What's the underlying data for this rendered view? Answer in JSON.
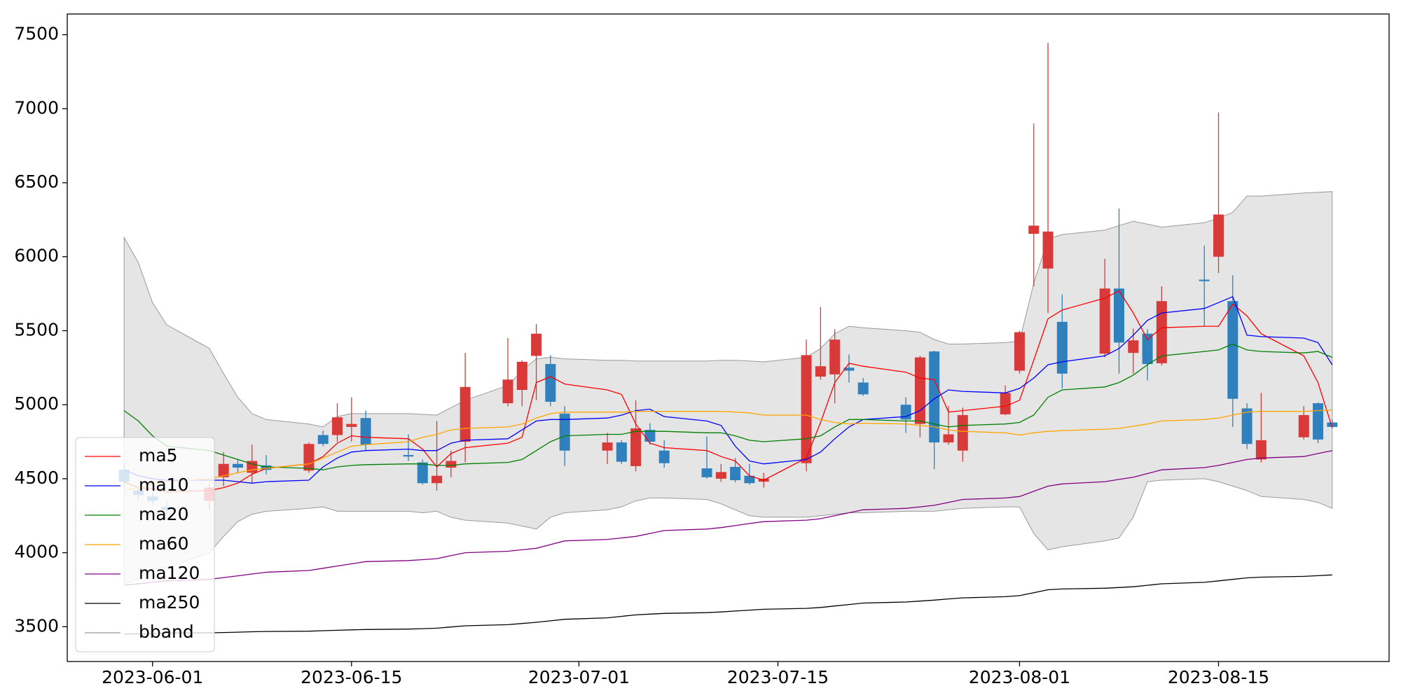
{
  "chart_data": {
    "type": "candlestick",
    "x": [
      "2023-05-30",
      "2023-05-31",
      "2023-06-01",
      "2023-06-02",
      "2023-06-05",
      "2023-06-06",
      "2023-06-07",
      "2023-06-08",
      "2023-06-09",
      "2023-06-12",
      "2023-06-13",
      "2023-06-14",
      "2023-06-15",
      "2023-06-16",
      "2023-06-19",
      "2023-06-20",
      "2023-06-21",
      "2023-06-22",
      "2023-06-23",
      "2023-06-26",
      "2023-06-27",
      "2023-06-28",
      "2023-06-29",
      "2023-06-30",
      "2023-07-03",
      "2023-07-04",
      "2023-07-05",
      "2023-07-06",
      "2023-07-07",
      "2023-07-10",
      "2023-07-11",
      "2023-07-12",
      "2023-07-13",
      "2023-07-14",
      "2023-07-17",
      "2023-07-18",
      "2023-07-19",
      "2023-07-20",
      "2023-07-21",
      "2023-07-24",
      "2023-07-25",
      "2023-07-26",
      "2023-07-27",
      "2023-07-28",
      "2023-07-31",
      "2023-08-01",
      "2023-08-02",
      "2023-08-03",
      "2023-08-04",
      "2023-08-07",
      "2023-08-08",
      "2023-08-09",
      "2023-08-10",
      "2023-08-11",
      "2023-08-14",
      "2023-08-15",
      "2023-08-16",
      "2023-08-17",
      "2023-08-18",
      "2023-08-21",
      "2023-08-22",
      "2023-08-23"
    ],
    "open": [
      4560,
      4420,
      4380,
      4310,
      4350,
      4510,
      4600,
      4540,
      4590,
      4555,
      4795,
      4795,
      4850,
      4910,
      4660,
      4610,
      4470,
      4575,
      4750,
      5010,
      5100,
      5330,
      5275,
      4940,
      4690,
      4745,
      4585,
      4830,
      4690,
      4570,
      4500,
      4580,
      4520,
      4480,
      4605,
      5190,
      5205,
      5250,
      5150,
      5000,
      4870,
      5360,
      4745,
      4690,
      4935,
      5230,
      6155,
      5920,
      5560,
      5345,
      5785,
      5350,
      5480,
      5280,
      5845,
      6000,
      5700,
      4975,
      4630,
      4780,
      5010,
      4880
    ],
    "high": [
      4600,
      4450,
      4410,
      4350,
      4460,
      4680,
      4630,
      4730,
      4660,
      4745,
      4825,
      5010,
      5050,
      4960,
      4800,
      4630,
      4890,
      4690,
      5350,
      5450,
      5300,
      5545,
      5335,
      4990,
      4810,
      4760,
      5030,
      4875,
      4760,
      4785,
      4600,
      4640,
      4600,
      4540,
      5440,
      5660,
      5510,
      5340,
      5180,
      5050,
      5330,
      5365,
      4990,
      4980,
      5130,
      5500,
      6900,
      7445,
      5745,
      5985,
      6325,
      5515,
      5510,
      5800,
      6075,
      6975,
      5875,
      5010,
      5080,
      4990,
      5015,
      4900
    ],
    "low": [
      4450,
      4350,
      4320,
      4260,
      4290,
      4450,
      4540,
      4470,
      4530,
      4540,
      4720,
      4750,
      4750,
      4690,
      4620,
      4460,
      4420,
      4510,
      4610,
      4990,
      4990,
      5030,
      4990,
      4585,
      4600,
      4600,
      4550,
      4730,
      4575,
      4500,
      4480,
      4475,
      4460,
      4440,
      4550,
      5170,
      5010,
      5150,
      5060,
      4810,
      4780,
      4565,
      4730,
      4615,
      4930,
      5210,
      5800,
      5620,
      5110,
      5320,
      5210,
      5210,
      5165,
      5265,
      5530,
      5890,
      4850,
      4700,
      4610,
      4765,
      4740,
      4840
    ],
    "close": [
      4480,
      4390,
      4350,
      4290,
      4440,
      4600,
      4575,
      4620,
      4560,
      4735,
      4735,
      4915,
      4870,
      4730,
      4650,
      4470,
      4520,
      4620,
      5120,
      5170,
      5290,
      5480,
      5020,
      4690,
      4745,
      4615,
      4840,
      4750,
      4605,
      4510,
      4545,
      4490,
      4470,
      4500,
      5335,
      5260,
      5440,
      5230,
      5070,
      4900,
      5320,
      4745,
      4800,
      4930,
      5080,
      5490,
      6210,
      6170,
      5210,
      5785,
      5420,
      5435,
      5275,
      5700,
      5835,
      6285,
      5040,
      4735,
      4760,
      4930,
      4765,
      4850
    ],
    "up_color": "#d83a3a",
    "down_color": "#2f80bd",
    "series": [
      {
        "name": "ma5",
        "color": "#ff0000",
        "values": [
          4480,
          4440,
          4430,
          4410,
          4420,
          4440,
          4470,
          4530,
          4570,
          4600,
          4650,
          4740,
          4790,
          4780,
          4770,
          4700,
          4580,
          4670,
          4710,
          4740,
          4780,
          5150,
          5190,
          5140,
          5100,
          5070,
          4870,
          4740,
          4710,
          4690,
          4650,
          4620,
          4520,
          4490,
          4640,
          4880,
          5150,
          5280,
          5260,
          5220,
          5180,
          5170,
          4950,
          4960,
          4990,
          5030,
          5300,
          5580,
          5640,
          5720,
          5770,
          5620,
          5440,
          5520,
          5530,
          5530,
          5680,
          5600,
          5480,
          5330,
          5150,
          4845
        ]
      },
      {
        "name": "ma10",
        "color": "#0000ff",
        "values": [
          4560,
          4520,
          4500,
          4490,
          4490,
          4490,
          4480,
          4470,
          4480,
          4490,
          4580,
          4640,
          4680,
          4690,
          4700,
          4690,
          4690,
          4740,
          4760,
          4770,
          4830,
          4890,
          4900,
          4900,
          4910,
          4930,
          4960,
          4970,
          4920,
          4890,
          4860,
          4720,
          4620,
          4600,
          4630,
          4680,
          4770,
          4850,
          4900,
          4920,
          4960,
          5040,
          5100,
          5090,
          5080,
          5110,
          5180,
          5270,
          5290,
          5330,
          5380,
          5470,
          5570,
          5620,
          5650,
          5690,
          5730,
          5470,
          5460,
          5450,
          5420,
          5270
        ]
      },
      {
        "name": "ma20",
        "color": "#008000",
        "values": [
          4960,
          4890,
          4790,
          4720,
          4690,
          4660,
          4630,
          4600,
          4580,
          4570,
          4560,
          4580,
          4590,
          4595,
          4600,
          4600,
          4590,
          4590,
          4600,
          4610,
          4630,
          4690,
          4750,
          4790,
          4800,
          4800,
          4820,
          4820,
          4820,
          4810,
          4810,
          4790,
          4760,
          4750,
          4770,
          4790,
          4850,
          4900,
          4900,
          4890,
          4890,
          4870,
          4850,
          4860,
          4870,
          4880,
          4930,
          5050,
          5100,
          5120,
          5150,
          5200,
          5270,
          5330,
          5360,
          5370,
          5410,
          5370,
          5360,
          5350,
          5360,
          5320
        ]
      },
      {
        "name": "ma60",
        "color": "#ffa500",
        "values": [
          4420,
          4440,
          4460,
          4480,
          4500,
          4520,
          4540,
          4560,
          4570,
          4600,
          4640,
          4680,
          4720,
          4730,
          4750,
          4780,
          4800,
          4830,
          4840,
          4850,
          4870,
          4910,
          4940,
          4950,
          4950,
          4950,
          4955,
          4955,
          4955,
          4955,
          4955,
          4950,
          4945,
          4930,
          4930,
          4900,
          4880,
          4870,
          4875,
          4870,
          4860,
          4850,
          4830,
          4820,
          4810,
          4795,
          4810,
          4820,
          4825,
          4835,
          4840,
          4855,
          4870,
          4890,
          4900,
          4910,
          4930,
          4950,
          4955,
          4955,
          4960,
          4965
        ]
      },
      {
        "name": "ma120",
        "color": "#800080",
        "values": [
          3780,
          3790,
          3800,
          3810,
          3820,
          3832,
          3844,
          3856,
          3868,
          3880,
          3895,
          3910,
          3925,
          3940,
          3947,
          3953,
          3960,
          3980,
          4000,
          4010,
          4020,
          4030,
          4055,
          4080,
          4090,
          4100,
          4110,
          4130,
          4150,
          4160,
          4170,
          4183,
          4197,
          4210,
          4220,
          4230,
          4250,
          4270,
          4290,
          4300,
          4310,
          4320,
          4340,
          4360,
          4370,
          4380,
          4415,
          4450,
          4465,
          4480,
          4495,
          4510,
          4535,
          4560,
          4575,
          4590,
          4610,
          4630,
          4640,
          4650,
          4670,
          4690
        ]
      },
      {
        "name": "ma250",
        "color": "#000000",
        "values": [
          3450,
          3452,
          3454,
          3457,
          3459,
          3461,
          3463,
          3466,
          3468,
          3470,
          3473,
          3476,
          3479,
          3481,
          3484,
          3487,
          3490,
          3498,
          3506,
          3514,
          3522,
          3530,
          3540,
          3550,
          3560,
          3570,
          3580,
          3585,
          3590,
          3595,
          3600,
          3606,
          3612,
          3618,
          3624,
          3630,
          3640,
          3650,
          3660,
          3667,
          3673,
          3680,
          3688,
          3695,
          3703,
          3710,
          3730,
          3750,
          3755,
          3760,
          3765,
          3770,
          3780,
          3790,
          3800,
          3810,
          3820,
          3830,
          3835,
          3840,
          3845,
          3850
        ]
      }
    ],
    "band": {
      "name": "bband",
      "color": "#e5e5e5",
      "edge_color": "#9a9a9a",
      "upper": [
        6130,
        5960,
        5690,
        5540,
        5380,
        5210,
        5050,
        4940,
        4900,
        4870,
        4850,
        4920,
        4940,
        4940,
        4940,
        4935,
        4930,
        4980,
        5030,
        5130,
        5230,
        5310,
        5320,
        5310,
        5300,
        5300,
        5295,
        5295,
        5295,
        5295,
        5300,
        5300,
        5295,
        5290,
        5320,
        5380,
        5480,
        5530,
        5520,
        5500,
        5490,
        5440,
        5410,
        5410,
        5420,
        5430,
        5820,
        6120,
        6150,
        6180,
        6210,
        6240,
        6220,
        6200,
        6230,
        6260,
        6300,
        6410,
        6410,
        6430,
        6435,
        6440
      ],
      "lower": [
        3790,
        3820,
        3890,
        3900,
        4000,
        4110,
        4210,
        4260,
        4280,
        4300,
        4310,
        4280,
        4280,
        4280,
        4280,
        4270,
        4280,
        4240,
        4220,
        4200,
        4180,
        4160,
        4240,
        4270,
        4290,
        4310,
        4350,
        4370,
        4370,
        4360,
        4330,
        4290,
        4250,
        4240,
        4240,
        4250,
        4260,
        4270,
        4270,
        4280,
        4280,
        4280,
        4290,
        4300,
        4310,
        4310,
        4130,
        4020,
        4040,
        4080,
        4100,
        4240,
        4480,
        4490,
        4500,
        4480,
        4450,
        4420,
        4380,
        4360,
        4340,
        4300
      ]
    },
    "xlim": [
      "2023-05-26",
      "2023-08-27"
    ],
    "xticks": [
      "2023-06-01",
      "2023-06-15",
      "2023-07-01",
      "2023-07-15",
      "2023-08-01",
      "2023-08-15"
    ],
    "ylim": [
      3265,
      7640
    ],
    "yticks": [
      3500,
      4000,
      4500,
      5000,
      5500,
      6000,
      6500,
      7000,
      7500
    ],
    "legend": "lower left"
  }
}
